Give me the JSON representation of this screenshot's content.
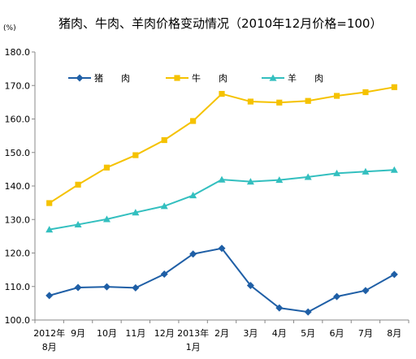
{
  "chart_data": {
    "type": "line",
    "title": "猪肉、牛肉、羊肉价格变动情况（2010年12月价格=100）",
    "unit": "(%)",
    "ylim": [
      100,
      180
    ],
    "yticks": [
      "100.0",
      "110.0",
      "120.0",
      "130.0",
      "140.0",
      "150.0",
      "160.0",
      "170.0",
      "180.0"
    ],
    "ytick_values": [
      100,
      110,
      120,
      130,
      140,
      150,
      160,
      170,
      180
    ],
    "categories": [
      [
        "2012年",
        "8月"
      ],
      [
        "9月"
      ],
      [
        "10月"
      ],
      [
        "11月"
      ],
      [
        "12月"
      ],
      [
        "2013年",
        "1月"
      ],
      [
        "2月"
      ],
      [
        "3月"
      ],
      [
        "4月"
      ],
      [
        "5月"
      ],
      [
        "6月"
      ],
      [
        "7月"
      ],
      [
        "8月"
      ]
    ],
    "grid": false,
    "legend_position": "top",
    "series": [
      {
        "name": "猪　　肉",
        "color": "#1f5fa6",
        "marker": "diamond",
        "values": [
          107.3,
          109.7,
          109.9,
          109.6,
          113.7,
          119.7,
          121.4,
          110.3,
          103.6,
          102.4,
          107.0,
          108.8,
          113.6
        ]
      },
      {
        "name": "牛　　肉",
        "color": "#f5c200",
        "marker": "square",
        "values": [
          134.9,
          140.4,
          145.5,
          149.2,
          153.7,
          159.4,
          167.5,
          165.2,
          164.9,
          165.4,
          166.9,
          168.0,
          169.5
        ]
      },
      {
        "name": "羊　　肉",
        "color": "#33bfbf",
        "marker": "triangle",
        "values": [
          127.0,
          128.5,
          130.1,
          132.1,
          134.0,
          137.2,
          141.9,
          141.3,
          141.8,
          142.7,
          143.8,
          144.3,
          144.8
        ]
      }
    ]
  }
}
